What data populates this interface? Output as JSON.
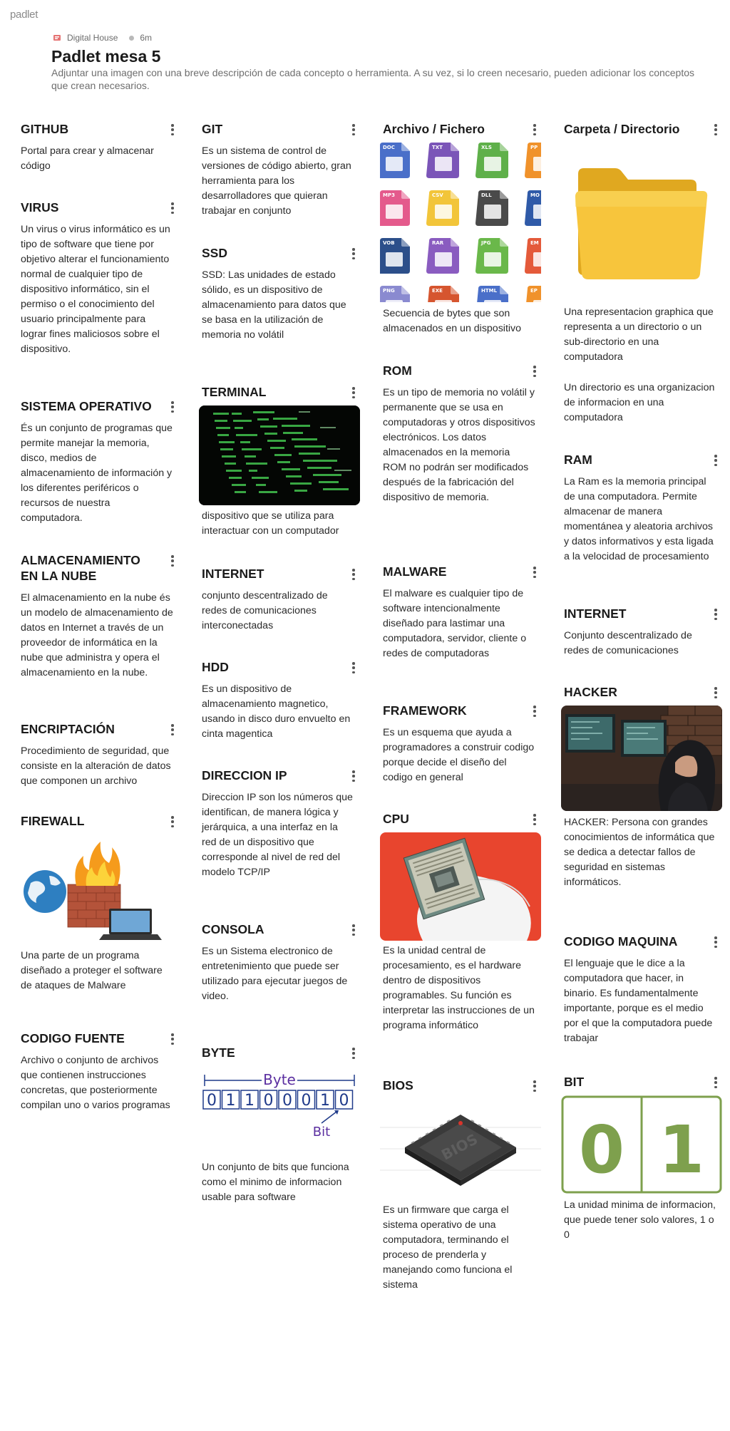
{
  "app": {
    "brand": "padlet"
  },
  "board": {
    "author": "Digital House",
    "time": "6m",
    "title": "Padlet mesa 5",
    "description": "Adjuntar una imagen con una breve descripción de cada concepto o herramienta. A su vez, si lo creen necesario, pueden adicionar los conceptos que crean necesarios."
  },
  "colors": {
    "accent_green": "#7cb342",
    "bit_green": "#7ea04d",
    "byte_purple": "#5b2fa0",
    "byte_blue": "#1f3a8a"
  },
  "posts": {
    "github": {
      "title": "GITHUB",
      "body": "Portal para crear y almacenar código"
    },
    "virus": {
      "title": "VIRUS",
      "body": "Un virus o virus informático es un tipo de software que tiene por objetivo alterar el funcionamiento normal de cualquier tipo de dispositivo informático, sin el permiso o el conocimiento del usuario principalmente para lograr fines maliciosos sobre el dispositivo."
    },
    "so": {
      "title": "SISTEMA OPERATIVO",
      "body": "És un conjunto de programas que permite manejar la memoria, disco, medios de almacenamiento de información y los diferentes periféricos o recursos de nuestra computadora."
    },
    "nube": {
      "title": "ALMACENAMIENTO EN LA NUBE",
      "body": "El almacenamiento en la nube és un modelo de almacenamiento de datos en Internet a través de un proveedor de informática en la nube que administra y opera el almacenamiento en la nube."
    },
    "encriptacion": {
      "title": "ENCRIPTACIÓN",
      "body": "Procedimiento de seguridad, que consiste en la alteración de datos que componen un archivo"
    },
    "firewall": {
      "title": "FIREWALL",
      "body": "Una parte de un programa diseñado a proteger el software de ataques de Malware"
    },
    "codigofuente": {
      "title": "CODIGO FUENTE",
      "body": "Archivo o conjunto de archivos que contienen instrucciones concretas, que posteriormente compilan uno o varios programas"
    },
    "git": {
      "title": "GIT",
      "body": "Es un sistema de control de versiones de código abierto, gran herramienta para los desarrolladores que quieran trabajar en conjunto"
    },
    "ssd": {
      "title": "SSD",
      "body": "SSD: Las unidades de estado sólido, es un dispositivo de almacenamiento para datos que se basa en la utilización de memoria no volátil"
    },
    "terminal": {
      "title": "TERMINAL",
      "body": "dispositivo que se utiliza para interactuar con un computador"
    },
    "internet1": {
      "title": "INTERNET",
      "body": "conjunto descentralizado de redes de comunicaciones interconectadas"
    },
    "hdd": {
      "title": "HDD",
      "body": "Es un dispositivo de almacenamiento magnetico, usando in disco duro envuelto en cinta magentica"
    },
    "ip": {
      "title": "DIRECCION IP",
      "body": "Direccion IP son los números que identifican, de manera lógica y jerárquica, a una interfaz en la red de un dispositivo que corresponde al nivel de red del modelo TCP/IP"
    },
    "consola": {
      "title": "CONSOLA",
      "body": "Es un Sistema electronico de entretenimiento que puede ser utilizado para ejecutar juegos de video."
    },
    "byte": {
      "title": "BYTE",
      "body": "Un conjunto de bits que funciona como el minimo de informacion usable para software",
      "img_label_top": "Byte",
      "img_label_bottom": "Bit",
      "bits": [
        "0",
        "1",
        "1",
        "0",
        "0",
        "0",
        "1",
        "0"
      ]
    },
    "archivo": {
      "title": "Archivo / Fichero",
      "body": "Secuencia de bytes que son almacenados en un dispositivo",
      "icons": [
        {
          "tag": "DOC",
          "color": "#4a6fc9"
        },
        {
          "tag": "TXT",
          "color": "#7b55b8"
        },
        {
          "tag": "XLS",
          "color": "#5fb04a"
        },
        {
          "tag": "PP",
          "color": "#f0922b"
        },
        {
          "tag": "MP3",
          "color": "#e45a8c"
        },
        {
          "tag": "CSV",
          "color": "#f2c53a"
        },
        {
          "tag": "DLL",
          "color": "#4a4a4a"
        },
        {
          "tag": "MO",
          "color": "#2f5aa8"
        },
        {
          "tag": "VOB",
          "color": "#2c4f8a"
        },
        {
          "tag": "RAR",
          "color": "#8a5cc0"
        },
        {
          "tag": "JPG",
          "color": "#6ab84a"
        },
        {
          "tag": "EM",
          "color": "#e45a3a"
        },
        {
          "tag": "PNG",
          "color": "#8a8ad0"
        },
        {
          "tag": "EXE",
          "color": "#d6552f"
        },
        {
          "tag": "HTML",
          "color": "#4a6fc9"
        },
        {
          "tag": "EP",
          "color": "#f0922b"
        }
      ]
    },
    "rom": {
      "title": "ROM",
      "body": "Es un tipo de memoria no volátil y permanente que se usa en computadoras y otros dispositivos electrónicos. Los datos almacenados en la memoria ROM no podrán ser modificados después de la fabricación del dispositivo de memoria."
    },
    "malware": {
      "title": "MALWARE",
      "body": "El malware es cualquier tipo de software intencionalmente diseñado para lastimar una computadora, servidor, cliente o redes de computadoras"
    },
    "framework": {
      "title": "FRAMEWORK",
      "body": "Es un esquema que ayuda a programadores a construir codigo porque decide el diseño del codigo en general"
    },
    "cpu": {
      "title": "CPU",
      "body": "Es la unidad central de procesamiento, es el hardware dentro de dispositivos programables. Su función es interpretar las instrucciones de un programa informático"
    },
    "bios": {
      "title": "BIOS",
      "body": "Es un firmware que carga el sistema operativo de una computadora, terminando el proceso de prenderla y manejando como funciona el sistema",
      "chip_label": "BIOS"
    },
    "carpeta": {
      "title": "Carpeta / Directorio",
      "body1": "Una representacion graphica que representa a un directorio o un sub-directorio en una computadora",
      "body2": "Un directorio es una organizacion de informacion en una computadora"
    },
    "ram": {
      "title": "RAM",
      "body": "La Ram es la memoria principal de una computadora. Permite almacenar de manera momentánea y aleatoria archivos y datos informativos y esta ligada a la velocidad de procesamiento"
    },
    "internet2": {
      "title": "INTERNET",
      "body": "Conjunto descentralizado de redes de comunicaciones"
    },
    "hacker": {
      "title": "HACKER",
      "body": "HACKER: Persona con grandes conocimientos de informática que se dedica a detectar fallos de seguridad en sistemas informáticos."
    },
    "codigomaquina": {
      "title": "CODIGO MAQUINA",
      "body": "El lenguaje que le dice a la computadora que hacer, in binario. Es fundamentalmente importante, porque es el medio por el que la computadora puede trabajar"
    },
    "bit": {
      "title": "BIT",
      "body": "La unidad minima de informacion, que puede tener solo valores, 1 o 0",
      "digit0": "0",
      "digit1": "1"
    }
  }
}
